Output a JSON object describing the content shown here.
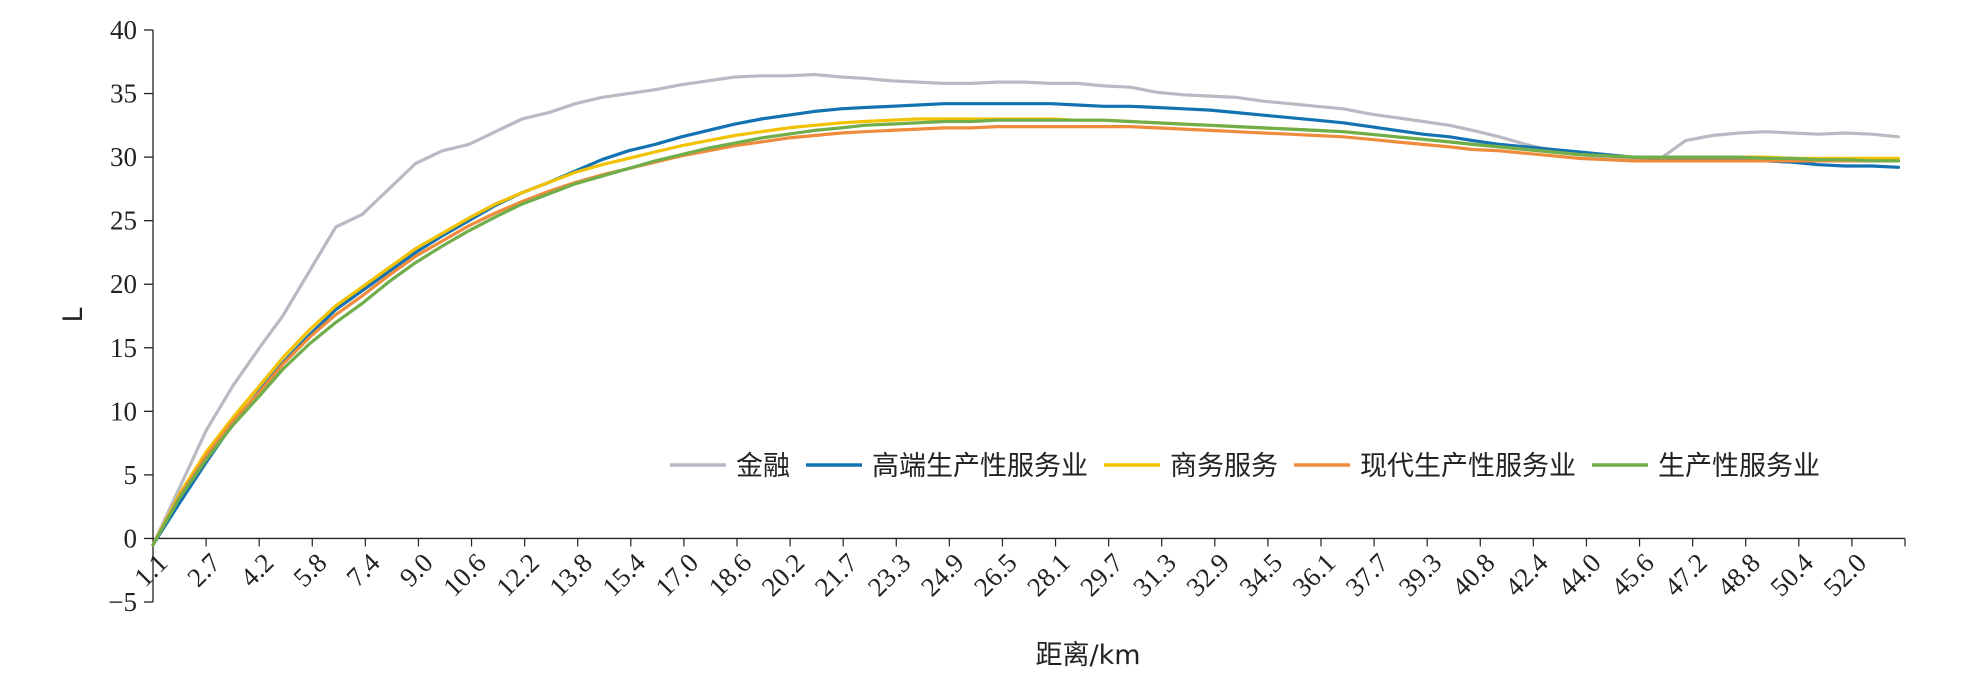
{
  "chart_data": {
    "type": "line",
    "ylabel": "L",
    "xlabel": "距离/km",
    "ylim": [
      -5,
      40
    ],
    "yticks": [
      -5,
      0,
      5,
      10,
      15,
      20,
      25,
      30,
      35,
      40
    ],
    "xlim": [
      0.3,
      53.0
    ],
    "xticks": [
      "1.1",
      "2.7",
      "4.2",
      "5.8",
      "7.4",
      "9.0",
      "10.6",
      "12.2",
      "13.8",
      "15.4",
      "17.0",
      "18.6",
      "20.2",
      "21.7",
      "23.3",
      "24.9",
      "26.5",
      "28.1",
      "29.7",
      "31.3",
      "32.9",
      "34.5",
      "36.1",
      "37.7",
      "39.3",
      "40.8",
      "42.4",
      "44.0",
      "45.6",
      "47.2",
      "48.8",
      "50.4",
      "52.0"
    ],
    "legend_position": "lower-right",
    "grid": false,
    "series": [
      {
        "name": "金融",
        "color": "#b9b9c3",
        "x": [
          0.3,
          1.1,
          1.9,
          2.7,
          3.5,
          4.2,
          5.0,
          5.8,
          6.6,
          7.4,
          8.2,
          9.0,
          9.8,
          10.6,
          11.4,
          12.2,
          13.0,
          13.8,
          14.6,
          15.4,
          16.2,
          17.0,
          17.8,
          18.6,
          19.4,
          20.2,
          21.0,
          21.7,
          22.5,
          23.3,
          24.1,
          24.9,
          25.7,
          26.5,
          27.3,
          28.1,
          28.9,
          29.7,
          30.5,
          31.3,
          32.1,
          32.9,
          33.7,
          34.5,
          35.3,
          36.1,
          36.9,
          37.7,
          38.5,
          39.3,
          40.0,
          40.8,
          41.6,
          42.4,
          43.2,
          44.0,
          44.8,
          45.6,
          46.4,
          47.2,
          48.0,
          48.8,
          49.6,
          50.4,
          51.2,
          52.0,
          52.8
        ],
        "values": [
          -0.5,
          4.0,
          8.5,
          12.0,
          15.0,
          17.5,
          21.0,
          24.5,
          25.5,
          27.5,
          29.5,
          30.5,
          31.0,
          32.0,
          33.0,
          33.5,
          34.2,
          34.7,
          35.0,
          35.3,
          35.7,
          36.0,
          36.3,
          36.4,
          36.4,
          36.5,
          36.3,
          36.2,
          36.0,
          35.9,
          35.8,
          35.8,
          35.9,
          35.9,
          35.8,
          35.8,
          35.6,
          35.5,
          35.1,
          34.9,
          34.8,
          34.7,
          34.4,
          34.2,
          34.0,
          33.8,
          33.4,
          33.1,
          32.8,
          32.5,
          32.1,
          31.6,
          31.0,
          30.5,
          30.2,
          30.0,
          29.8,
          29.8,
          31.3,
          31.7,
          31.9,
          32.0,
          31.9,
          31.8,
          31.9,
          31.8,
          31.6
        ]
      },
      {
        "name": "高端生产性服务业",
        "color": "#1272b2",
        "x": [
          0.3,
          1.1,
          1.9,
          2.7,
          3.5,
          4.2,
          5.0,
          5.8,
          6.6,
          7.4,
          8.2,
          9.0,
          9.8,
          10.6,
          11.4,
          12.2,
          13.0,
          13.8,
          14.6,
          15.4,
          16.2,
          17.0,
          17.8,
          18.6,
          19.4,
          20.2,
          21.0,
          21.7,
          22.5,
          23.3,
          24.1,
          24.9,
          25.7,
          26.5,
          27.3,
          28.1,
          28.9,
          29.7,
          30.5,
          31.3,
          32.1,
          32.9,
          33.7,
          34.5,
          35.3,
          36.1,
          36.9,
          37.7,
          38.5,
          39.3,
          40.0,
          40.8,
          41.6,
          42.4,
          43.2,
          44.0,
          44.8,
          45.6,
          46.4,
          47.2,
          48.0,
          48.8,
          49.6,
          50.4,
          51.2,
          52.0,
          52.8
        ],
        "values": [
          -0.5,
          2.8,
          6.0,
          9.0,
          11.6,
          13.8,
          16.0,
          18.0,
          19.5,
          21.0,
          22.5,
          23.8,
          25.0,
          26.2,
          27.2,
          28.0,
          28.9,
          29.8,
          30.5,
          31.0,
          31.6,
          32.1,
          32.6,
          33.0,
          33.3,
          33.6,
          33.8,
          33.9,
          34.0,
          34.1,
          34.2,
          34.2,
          34.2,
          34.2,
          34.2,
          34.1,
          34.0,
          34.0,
          33.9,
          33.8,
          33.7,
          33.5,
          33.3,
          33.1,
          32.9,
          32.7,
          32.4,
          32.1,
          31.8,
          31.6,
          31.3,
          31.0,
          30.8,
          30.6,
          30.4,
          30.2,
          30.0,
          29.9,
          29.8,
          29.8,
          29.8,
          29.7,
          29.6,
          29.4,
          29.3,
          29.3,
          29.2
        ]
      },
      {
        "name": "商务服务",
        "color": "#f2c200",
        "x": [
          0.3,
          1.1,
          1.9,
          2.7,
          3.5,
          4.2,
          5.0,
          5.8,
          6.6,
          7.4,
          8.2,
          9.0,
          9.8,
          10.6,
          11.4,
          12.2,
          13.0,
          13.8,
          14.6,
          15.4,
          16.2,
          17.0,
          17.8,
          18.6,
          19.4,
          20.2,
          21.0,
          21.7,
          22.5,
          23.3,
          24.1,
          24.9,
          25.7,
          26.5,
          27.3,
          28.1,
          28.9,
          29.7,
          30.5,
          31.3,
          32.1,
          32.9,
          33.7,
          34.5,
          35.3,
          36.1,
          36.9,
          37.7,
          38.5,
          39.3,
          40.0,
          40.8,
          41.6,
          42.4,
          43.2,
          44.0,
          44.8,
          45.6,
          46.4,
          47.2,
          48.0,
          48.8,
          49.6,
          50.4,
          51.2,
          52.0,
          52.8
        ],
        "values": [
          -0.5,
          3.5,
          6.8,
          9.5,
          12.0,
          14.2,
          16.4,
          18.3,
          19.8,
          21.3,
          22.8,
          24.0,
          25.2,
          26.3,
          27.2,
          28.0,
          28.8,
          29.4,
          29.9,
          30.4,
          30.9,
          31.3,
          31.7,
          32.0,
          32.3,
          32.5,
          32.7,
          32.8,
          32.9,
          33.0,
          33.0,
          33.0,
          33.0,
          33.0,
          33.0,
          32.9,
          32.9,
          32.8,
          32.7,
          32.6,
          32.5,
          32.4,
          32.3,
          32.2,
          32.1,
          32.0,
          31.8,
          31.6,
          31.4,
          31.2,
          31.0,
          30.8,
          30.6,
          30.4,
          30.2,
          30.1,
          30.0,
          30.0,
          30.0,
          30.0,
          30.0,
          30.0,
          29.9,
          29.9,
          29.9,
          29.9,
          29.9
        ]
      },
      {
        "name": "现代生产性服务业",
        "color": "#ef8b3c",
        "x": [
          0.3,
          1.1,
          1.9,
          2.7,
          3.5,
          4.2,
          5.0,
          5.8,
          6.6,
          7.4,
          8.2,
          9.0,
          9.8,
          10.6,
          11.4,
          12.2,
          13.0,
          13.8,
          14.6,
          15.4,
          16.2,
          17.0,
          17.8,
          18.6,
          19.4,
          20.2,
          21.0,
          21.7,
          22.5,
          23.3,
          24.1,
          24.9,
          25.7,
          26.5,
          27.3,
          28.1,
          28.9,
          29.7,
          30.5,
          31.3,
          32.1,
          32.9,
          33.7,
          34.5,
          35.3,
          36.1,
          36.9,
          37.7,
          38.5,
          39.3,
          40.0,
          40.8,
          41.6,
          42.4,
          43.2,
          44.0,
          44.8,
          45.6,
          46.4,
          47.2,
          48.0,
          48.8,
          49.6,
          50.4,
          51.2,
          52.0,
          52.8
        ],
        "values": [
          -0.5,
          3.3,
          6.5,
          9.2,
          11.5,
          13.7,
          15.8,
          17.6,
          19.1,
          20.7,
          22.2,
          23.4,
          24.6,
          25.6,
          26.5,
          27.3,
          28.0,
          28.6,
          29.1,
          29.6,
          30.1,
          30.5,
          30.9,
          31.2,
          31.5,
          31.7,
          31.9,
          32.0,
          32.1,
          32.2,
          32.3,
          32.3,
          32.4,
          32.4,
          32.4,
          32.4,
          32.4,
          32.4,
          32.3,
          32.2,
          32.1,
          32.0,
          31.9,
          31.8,
          31.7,
          31.6,
          31.4,
          31.2,
          31.0,
          30.8,
          30.6,
          30.5,
          30.3,
          30.1,
          29.9,
          29.8,
          29.7,
          29.7,
          29.7,
          29.7,
          29.7,
          29.7,
          29.7,
          29.7,
          29.7,
          29.7,
          29.7
        ]
      },
      {
        "name": "生产性服务业",
        "color": "#6fae4a",
        "x": [
          0.3,
          1.1,
          1.9,
          2.7,
          3.5,
          4.2,
          5.0,
          5.8,
          6.6,
          7.4,
          8.2,
          9.0,
          9.8,
          10.6,
          11.4,
          12.2,
          13.0,
          13.8,
          14.6,
          15.4,
          16.2,
          17.0,
          17.8,
          18.6,
          19.4,
          20.2,
          21.0,
          21.7,
          22.5,
          23.3,
          24.1,
          24.9,
          25.7,
          26.5,
          27.3,
          28.1,
          28.9,
          29.7,
          30.5,
          31.3,
          32.1,
          32.9,
          33.7,
          34.5,
          35.3,
          36.1,
          36.9,
          37.7,
          38.5,
          39.3,
          40.0,
          40.8,
          41.6,
          42.4,
          43.2,
          44.0,
          44.8,
          45.6,
          46.4,
          47.2,
          48.0,
          48.8,
          49.6,
          50.4,
          51.2,
          52.0,
          52.8
        ],
        "values": [
          -0.5,
          3.2,
          6.2,
          8.9,
          11.2,
          13.3,
          15.3,
          17.0,
          18.5,
          20.2,
          21.7,
          23.0,
          24.2,
          25.3,
          26.3,
          27.1,
          27.9,
          28.5,
          29.1,
          29.7,
          30.2,
          30.7,
          31.1,
          31.5,
          31.8,
          32.1,
          32.3,
          32.5,
          32.6,
          32.7,
          32.8,
          32.8,
          32.9,
          32.9,
          32.9,
          32.9,
          32.9,
          32.8,
          32.7,
          32.6,
          32.5,
          32.4,
          32.3,
          32.2,
          32.1,
          32.0,
          31.8,
          31.6,
          31.4,
          31.2,
          31.0,
          30.8,
          30.6,
          30.4,
          30.2,
          30.1,
          30.0,
          30.0,
          30.0,
          30.0,
          30.0,
          29.9,
          29.9,
          29.8,
          29.8,
          29.7,
          29.7
        ]
      }
    ]
  }
}
